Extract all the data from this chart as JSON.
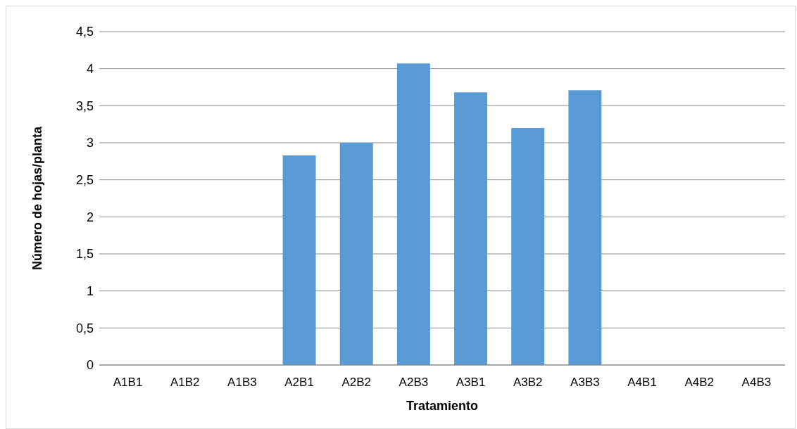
{
  "chart_data": {
    "type": "bar",
    "xlabel": "Tratamiento",
    "ylabel": "Número de hojas/planta",
    "categories": [
      "A1B1",
      "A1B2",
      "A1B3",
      "A2B1",
      "A2B2",
      "A2B3",
      "A3B1",
      "A3B2",
      "A3B3",
      "A4B1",
      "A4B2",
      "A4B3"
    ],
    "values": [
      0,
      0,
      0,
      2.83,
      3.0,
      4.07,
      3.68,
      3.2,
      3.71,
      0,
      0,
      0
    ],
    "color": "#5b9bd5",
    "ylim": [
      0,
      4.5
    ],
    "yticks": [
      0,
      {
        "value": 0.5,
        "label": "0,5"
      },
      1,
      {
        "value": 1.5,
        "label": "1,5"
      },
      2,
      {
        "value": 2.5,
        "label": "2,5"
      },
      3,
      {
        "value": 3.5,
        "label": "3,5"
      },
      4,
      {
        "value": 4.5,
        "label": "4,5"
      }
    ],
    "grid": "y"
  }
}
